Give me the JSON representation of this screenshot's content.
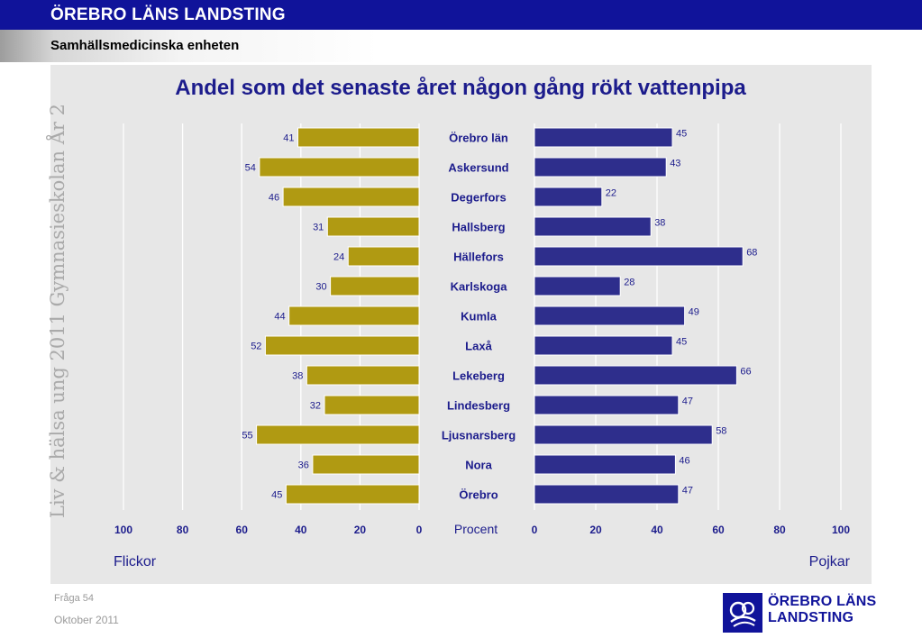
{
  "header": {
    "org_title": "ÖREBRO LÄNS LANDSTING",
    "unit": "Samhällsmedicinska enheten",
    "brand_color": "#10139a"
  },
  "side_text": "Liv & hälsa ung 2011 Gymnasieskolan År 2",
  "footer": {
    "question": "Fråga 54",
    "date": "Oktober 2011"
  },
  "logo": {
    "line1": "ÖREBRO LÄNS",
    "line2": "LANDSTING",
    "icon": "landsting-logo-icon"
  },
  "chart_data": {
    "type": "bar",
    "orientation": "horizontal-butterfly",
    "title": "Andel som det senaste året någon gång rökt vattenpipa",
    "center_label": "Procent",
    "categories": [
      "Örebro län",
      "Askersund",
      "Degerfors",
      "Hallsberg",
      "Hällefors",
      "Karlskoga",
      "Kumla",
      "Laxå",
      "Lekeberg",
      "Lindesberg",
      "Ljusnarsberg",
      "Nora",
      "Örebro"
    ],
    "series": [
      {
        "name": "Flickor",
        "side": "left",
        "color": "#b09a12",
        "values": [
          41,
          54,
          46,
          31,
          24,
          30,
          44,
          52,
          38,
          32,
          55,
          36,
          45
        ]
      },
      {
        "name": "Pojkar",
        "side": "right",
        "color": "#2e2e8c",
        "values": [
          45,
          43,
          22,
          38,
          68,
          28,
          49,
          45,
          66,
          47,
          58,
          46,
          47
        ]
      }
    ],
    "left_axis": {
      "ticks": [
        "100",
        "80",
        "60",
        "40",
        "20",
        "0"
      ],
      "range": [
        100,
        0
      ]
    },
    "right_axis": {
      "ticks": [
        "0",
        "20",
        "40",
        "60",
        "80",
        "100"
      ],
      "range": [
        0,
        100
      ]
    },
    "grid": true,
    "label_color": "#1c1c8c"
  }
}
